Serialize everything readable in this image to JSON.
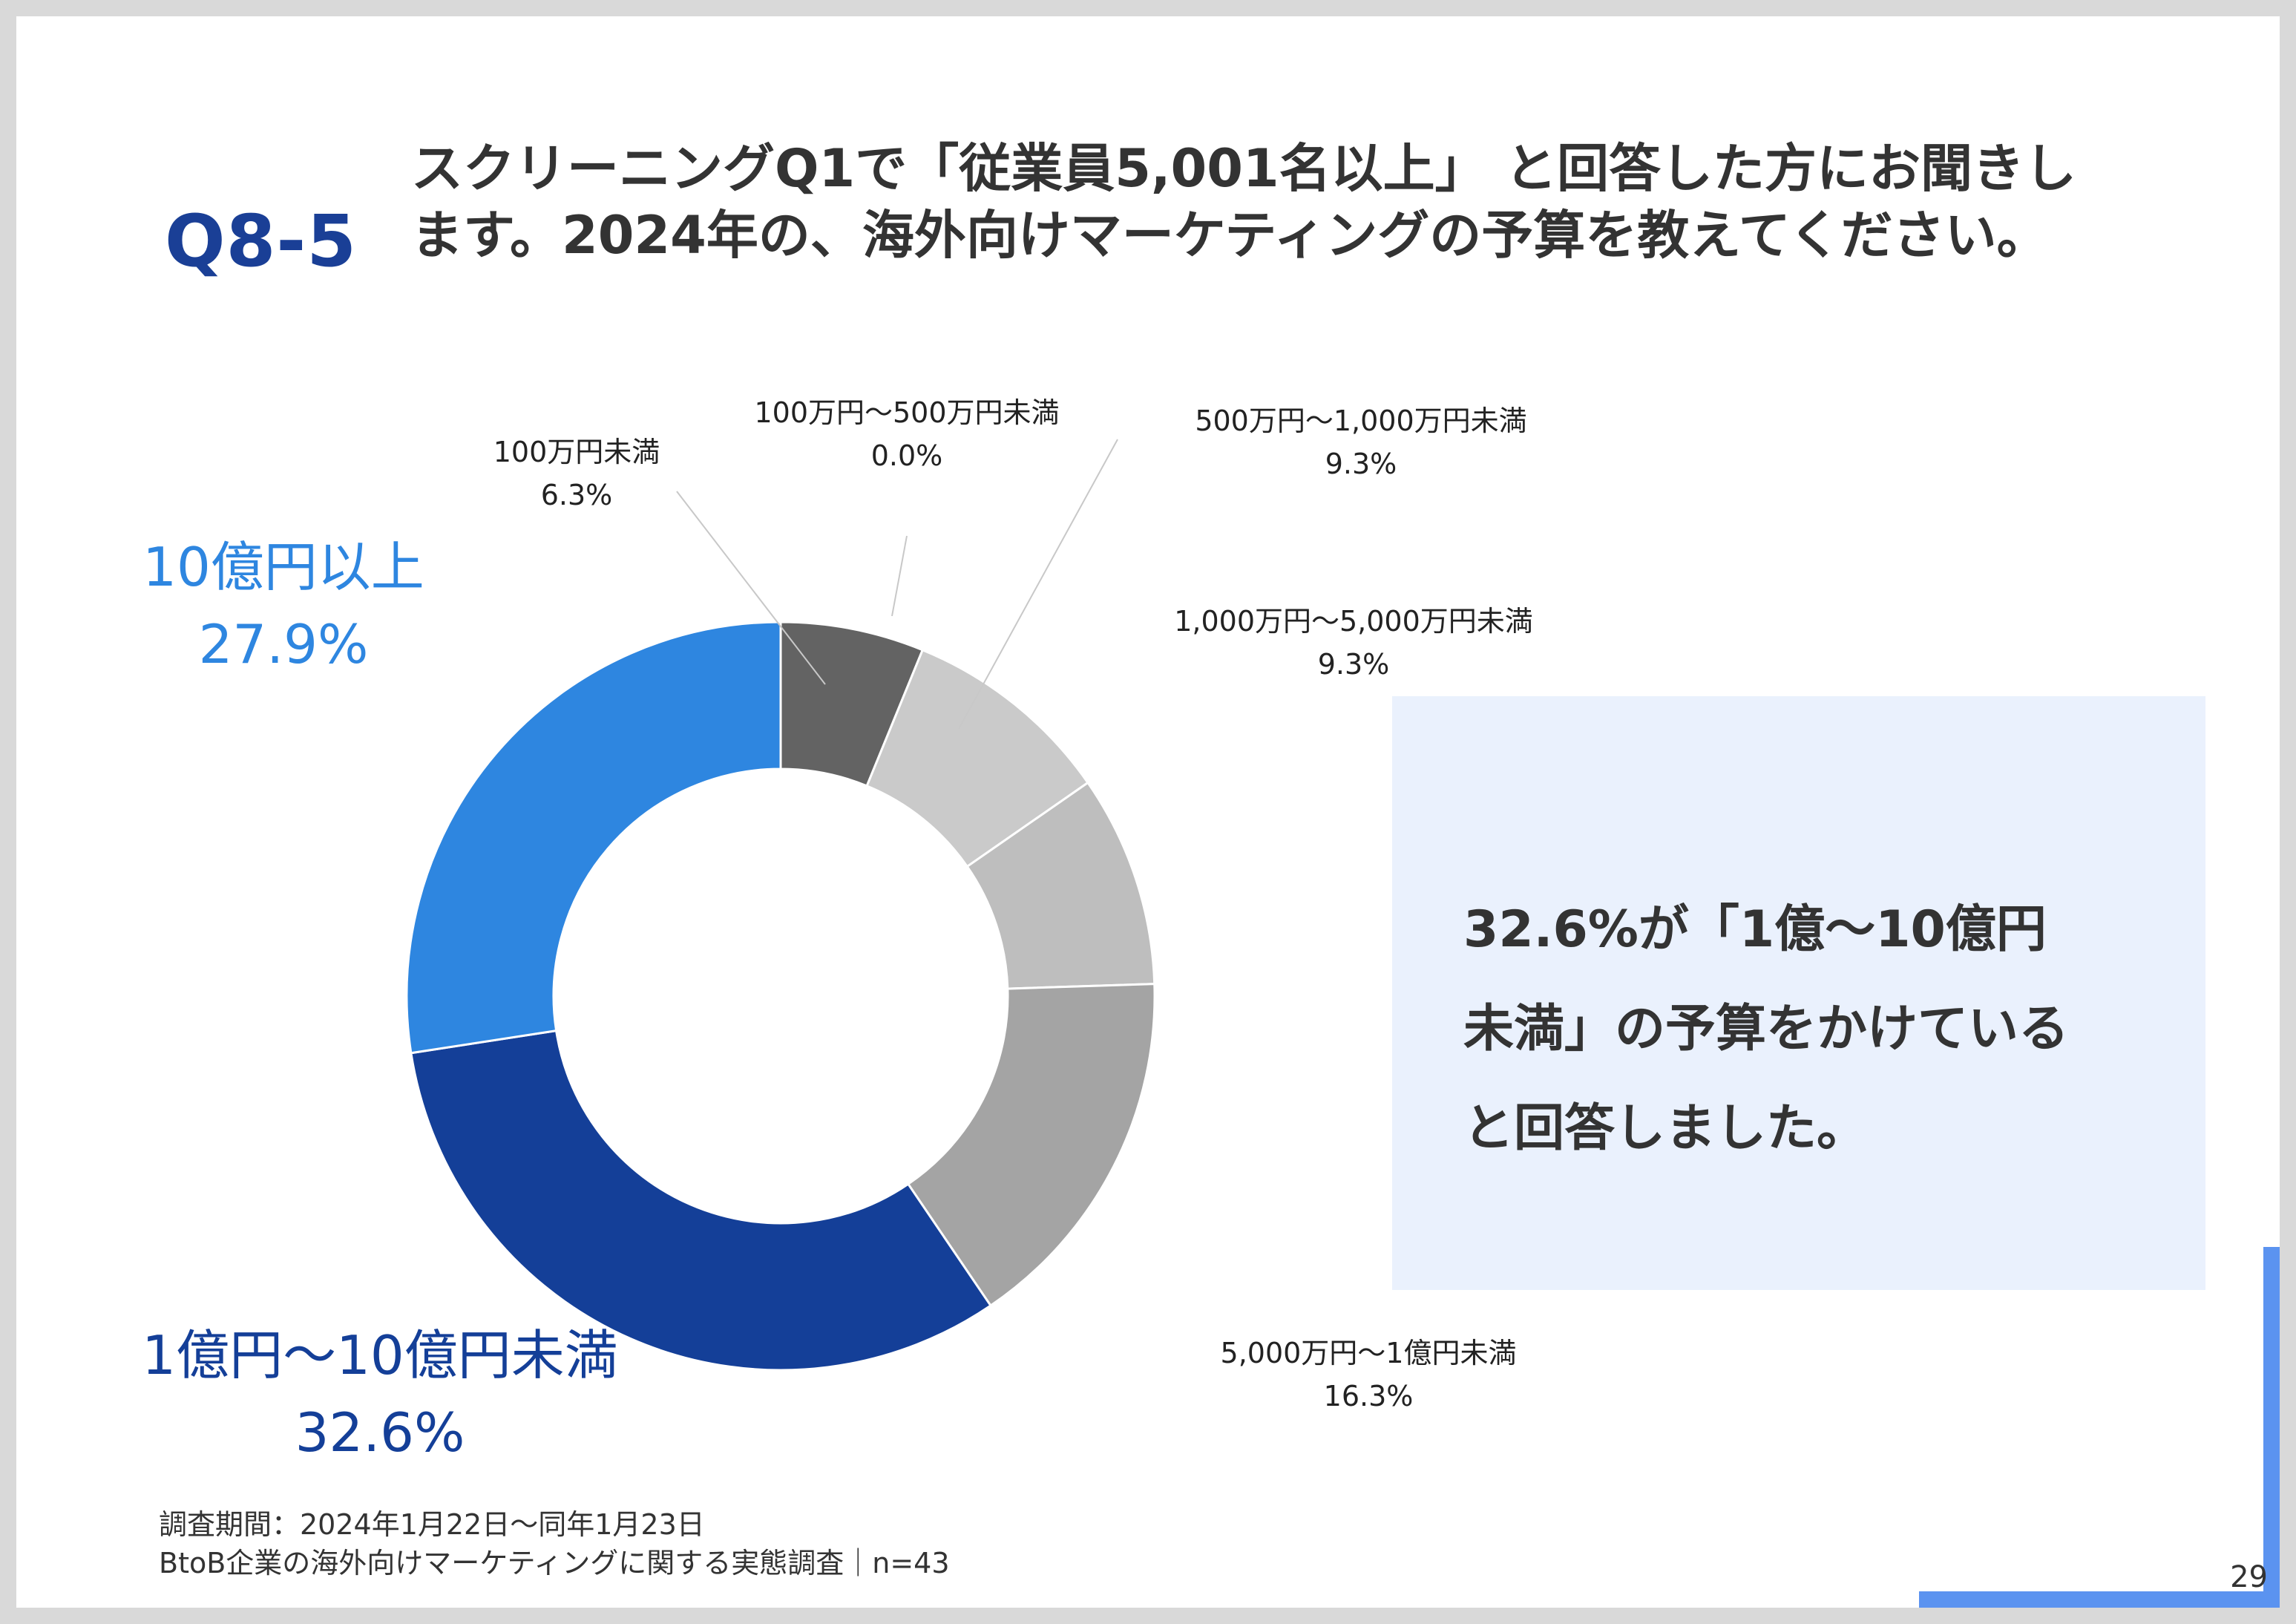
{
  "question": {
    "number": "Q8-5",
    "text": "スクリーニングQ1で「従業員5,001名以上」 と回答した方にお聞きします。2024年の、海外向けマーケティングの予算を教えてください。"
  },
  "chart_data": {
    "type": "pie",
    "donut": true,
    "categories": [
      "100万円未満",
      "100万円～500万円未満",
      "500万円～1,000万円未満",
      "1,000万円～5,000万円未満",
      "5,000万円～1億円未満",
      "1億円～10億円未満",
      "10億円以上"
    ],
    "values": [
      6.3,
      0.0,
      9.3,
      9.3,
      16.3,
      32.6,
      27.9
    ],
    "value_labels": [
      "6.3%",
      "0.0%",
      "9.3%",
      "9.3%",
      "16.3%",
      "32.6%",
      "27.9%"
    ],
    "colors": [
      "#636363",
      "#b0b0b0",
      "#cacaca",
      "#bebebe",
      "#a4a4a4",
      "#143f98",
      "#2e86e0"
    ],
    "highlight_colors": {
      "1億円～10億円未満": "#143f98",
      "10億円以上": "#2e86e0"
    }
  },
  "callout": {
    "lines": [
      "32.6%が「1億～10億円",
      "未満」の予算をかけている",
      "と回答しました。"
    ]
  },
  "footnote": {
    "period": "調査期間：2024年1月22日～同年1月23日",
    "survey": "BtoB企業の海外向けマーケティングに関する実態調査｜n=43"
  },
  "page_number": "29",
  "accent_color": "#5b93f0"
}
